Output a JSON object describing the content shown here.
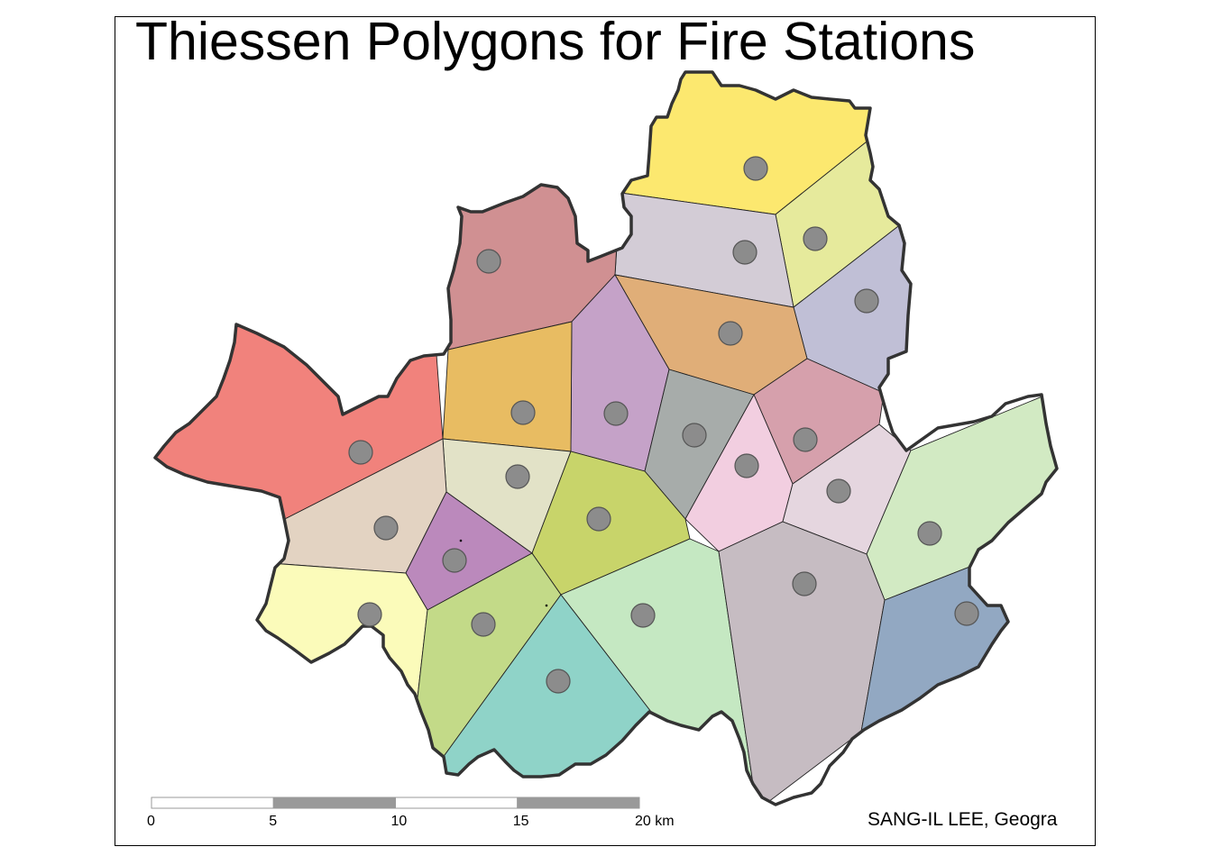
{
  "title": "Thiessen Polygons for Fire Stations",
  "credit": "SANG-IL LEE, Geogra",
  "scale_bar": {
    "labels": [
      "0",
      "5",
      "10",
      "15",
      "20 km"
    ],
    "colors": [
      "#ffffff",
      "#999999"
    ]
  },
  "colors": {
    "boundary": "#333333",
    "cell_edge": "#222222",
    "station_fill": "#8c8c8c",
    "station_stroke": "#555555"
  },
  "cells": [
    {
      "fill": "#FCE86F"
    },
    {
      "fill": "#E6EA9C"
    },
    {
      "fill": "#D3CCD6"
    },
    {
      "fill": "#C0BFD6"
    },
    {
      "fill": "#D09092"
    },
    {
      "fill": "#E0AE78"
    },
    {
      "fill": "#C5A2C8"
    },
    {
      "fill": "#E8BC62"
    },
    {
      "fill": "#A7ACAA"
    },
    {
      "fill": "#D6A0AC"
    },
    {
      "fill": "#F1827C"
    },
    {
      "fill": "#E2E2C7"
    },
    {
      "fill": "#F2CEE0"
    },
    {
      "fill": "#E5D6DF"
    },
    {
      "fill": "#C8D46A"
    },
    {
      "fill": "#E3D3C2"
    },
    {
      "fill": "#BB89BC"
    },
    {
      "fill": "#D2EAC3"
    },
    {
      "fill": "#FBFBBA"
    },
    {
      "fill": "#C3DA88"
    },
    {
      "fill": "#C5E8C2"
    },
    {
      "fill": "#C6BCC2"
    },
    {
      "fill": "#92A8C2"
    },
    {
      "fill": "#8FD3C8"
    }
  ]
}
